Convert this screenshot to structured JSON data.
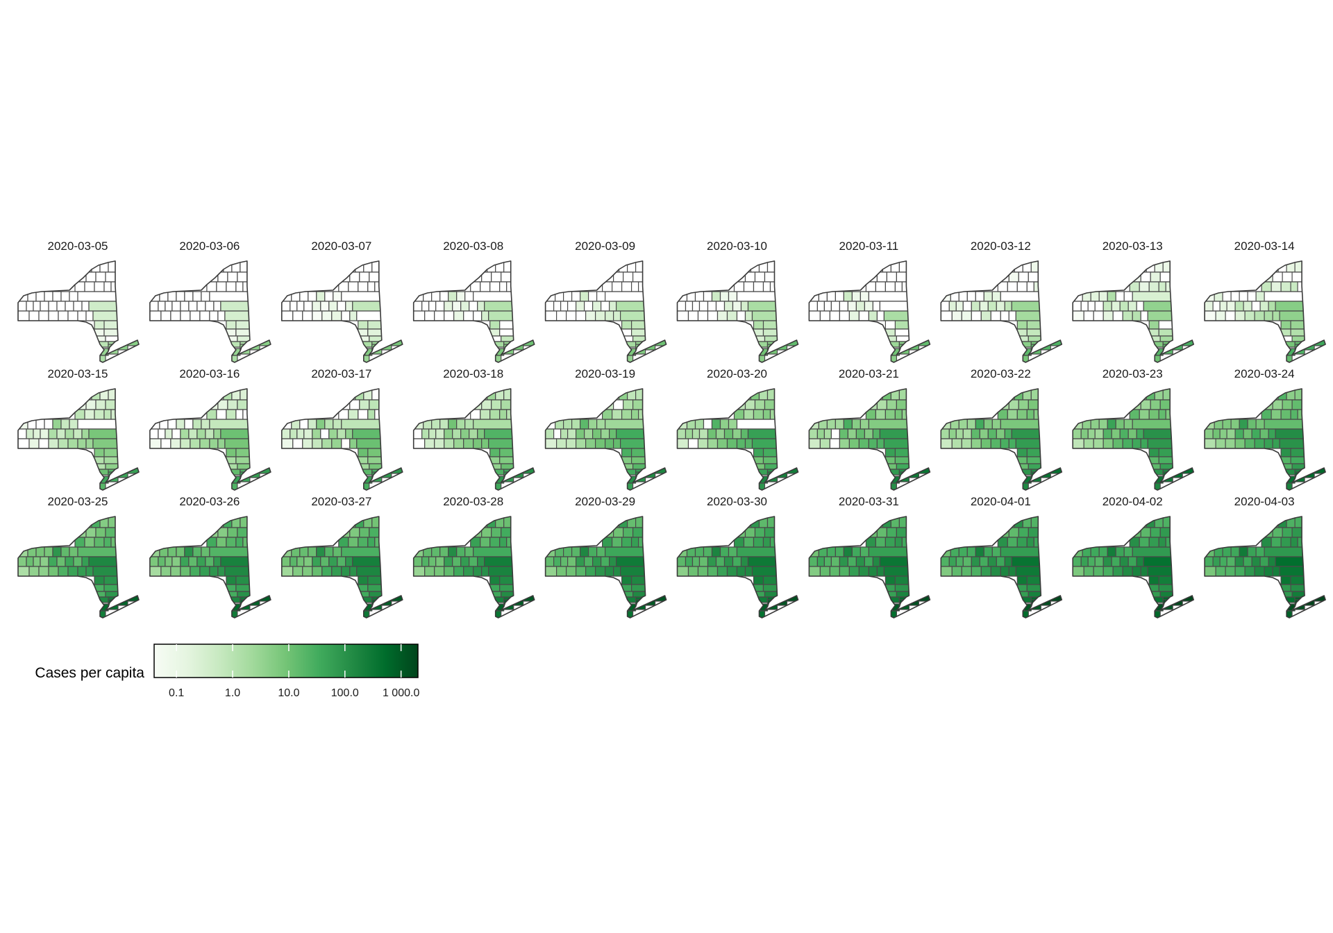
{
  "map": {
    "subject": "New York State counties",
    "legend": {
      "title": "Cases per capita",
      "scale": "log10",
      "range": [
        0.04,
        2000
      ],
      "ticks": [
        "0.1",
        "1.0",
        "10.0",
        "100.0",
        "1 000.0"
      ],
      "tick_values": [
        0.1,
        1,
        10,
        100,
        1000
      ],
      "colors": [
        "#f7fcf5",
        "#e5f5e0",
        "#c7e9c0",
        "#a1d99b",
        "#74c476",
        "#41ab5d",
        "#238b45",
        "#006d2c",
        "#00441b"
      ]
    },
    "na_color": "#ffffff",
    "panels": [
      {
        "date": "2020-03-05",
        "level": [
          0.0,
          0.0,
          0.0,
          0.15,
          0.35
        ]
      },
      {
        "date": "2020-03-06",
        "level": [
          0.0,
          0.0,
          0.0,
          0.15,
          0.35
        ]
      },
      {
        "date": "2020-03-07",
        "level": [
          0.0,
          0.0,
          0.05,
          0.2,
          0.4
        ]
      },
      {
        "date": "2020-03-08",
        "level": [
          0.0,
          0.0,
          0.1,
          0.25,
          0.42
        ]
      },
      {
        "date": "2020-03-09",
        "level": [
          0.0,
          0.0,
          0.1,
          0.25,
          0.42
        ]
      },
      {
        "date": "2020-03-10",
        "level": [
          0.0,
          0.0,
          0.12,
          0.28,
          0.45
        ]
      },
      {
        "date": "2020-03-11",
        "level": [
          0.0,
          0.0,
          0.12,
          0.3,
          0.45
        ]
      },
      {
        "date": "2020-03-12",
        "level": [
          0.05,
          0.1,
          0.2,
          0.32,
          0.5
        ]
      },
      {
        "date": "2020-03-13",
        "level": [
          0.06,
          0.12,
          0.22,
          0.35,
          0.52
        ]
      },
      {
        "date": "2020-03-14",
        "level": [
          0.08,
          0.15,
          0.25,
          0.38,
          0.55
        ]
      },
      {
        "date": "2020-03-15",
        "level": [
          0.1,
          0.18,
          0.3,
          0.42,
          0.58
        ]
      },
      {
        "date": "2020-03-16",
        "level": [
          0.12,
          0.2,
          0.32,
          0.45,
          0.6
        ]
      },
      {
        "date": "2020-03-17",
        "level": [
          0.15,
          0.22,
          0.35,
          0.48,
          0.62
        ]
      },
      {
        "date": "2020-03-18",
        "level": [
          0.2,
          0.28,
          0.4,
          0.52,
          0.65
        ]
      },
      {
        "date": "2020-03-19",
        "level": [
          0.25,
          0.32,
          0.45,
          0.56,
          0.68
        ]
      },
      {
        "date": "2020-03-20",
        "level": [
          0.28,
          0.36,
          0.48,
          0.6,
          0.72
        ]
      },
      {
        "date": "2020-03-21",
        "level": [
          0.3,
          0.4,
          0.5,
          0.62,
          0.75
        ]
      },
      {
        "date": "2020-03-22",
        "level": [
          0.32,
          0.42,
          0.52,
          0.64,
          0.77
        ]
      },
      {
        "date": "2020-03-23",
        "level": [
          0.36,
          0.45,
          0.55,
          0.66,
          0.78
        ]
      },
      {
        "date": "2020-03-24",
        "level": [
          0.4,
          0.48,
          0.58,
          0.68,
          0.8
        ]
      },
      {
        "date": "2020-03-25",
        "level": [
          0.42,
          0.5,
          0.6,
          0.7,
          0.82
        ]
      },
      {
        "date": "2020-03-26",
        "level": [
          0.44,
          0.52,
          0.62,
          0.72,
          0.83
        ]
      },
      {
        "date": "2020-03-27",
        "level": [
          0.46,
          0.54,
          0.63,
          0.73,
          0.84
        ]
      },
      {
        "date": "2020-03-28",
        "level": [
          0.48,
          0.56,
          0.64,
          0.74,
          0.85
        ]
      },
      {
        "date": "2020-03-29",
        "level": [
          0.5,
          0.58,
          0.66,
          0.75,
          0.86
        ]
      },
      {
        "date": "2020-03-30",
        "level": [
          0.52,
          0.6,
          0.67,
          0.76,
          0.87
        ]
      },
      {
        "date": "2020-03-31",
        "level": [
          0.54,
          0.61,
          0.68,
          0.77,
          0.88
        ]
      },
      {
        "date": "2020-04-01",
        "level": [
          0.55,
          0.62,
          0.69,
          0.78,
          0.89
        ]
      },
      {
        "date": "2020-04-02",
        "level": [
          0.56,
          0.63,
          0.7,
          0.79,
          0.9
        ]
      },
      {
        "date": "2020-04-03",
        "level": [
          0.57,
          0.64,
          0.71,
          0.8,
          0.92
        ]
      }
    ]
  }
}
